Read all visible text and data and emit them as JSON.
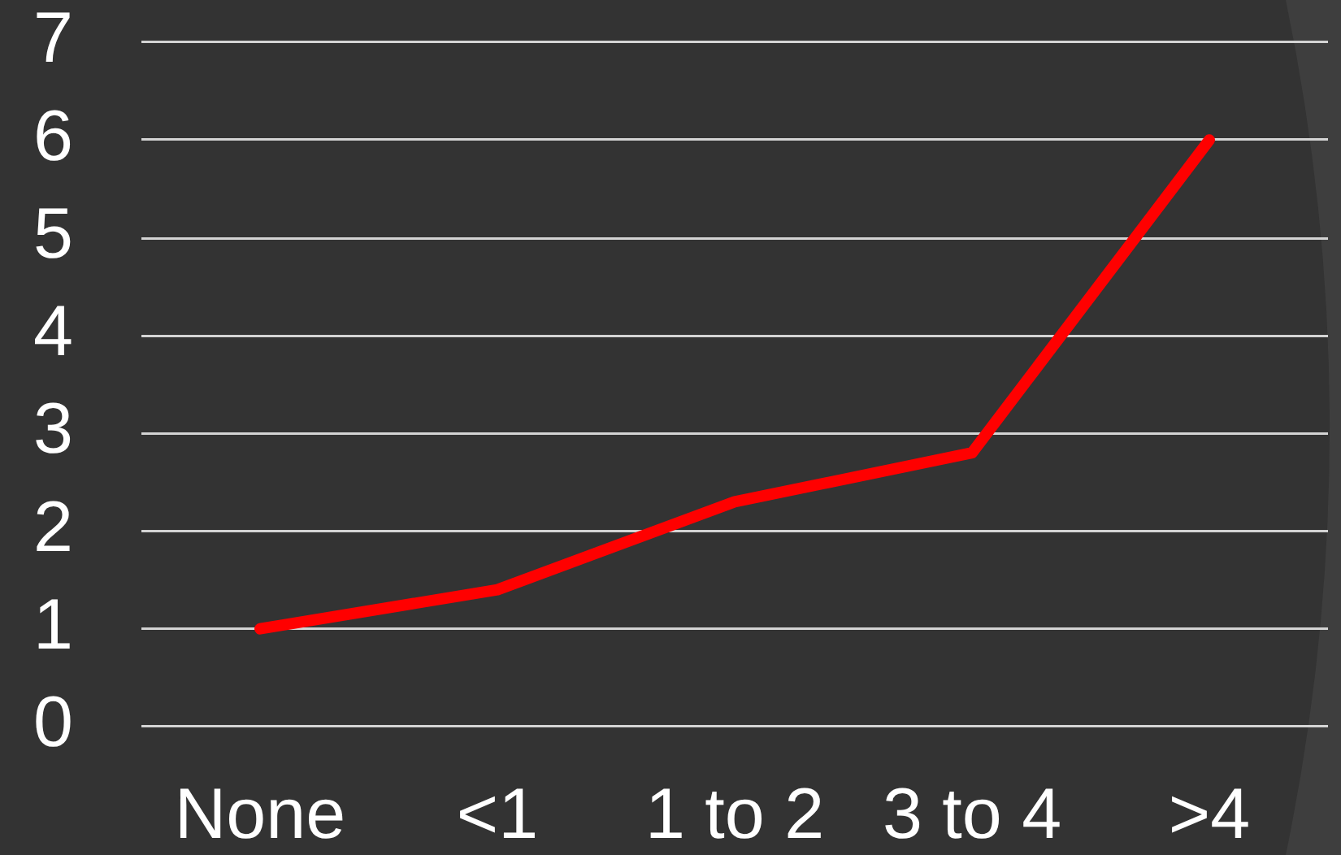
{
  "chart_data": {
    "type": "line",
    "categories": [
      "None",
      "<1",
      "1 to 2",
      "3 to 4",
      ">4"
    ],
    "series": [
      {
        "color": "#ff0000",
        "values": [
          1,
          1.4,
          2.3,
          2.8,
          6
        ]
      }
    ],
    "ylim": [
      0,
      7
    ],
    "yticks": [
      0,
      1,
      2,
      3,
      4,
      5,
      6,
      7
    ],
    "grid": "y",
    "marker": "none",
    "line_style": "solid"
  }
}
